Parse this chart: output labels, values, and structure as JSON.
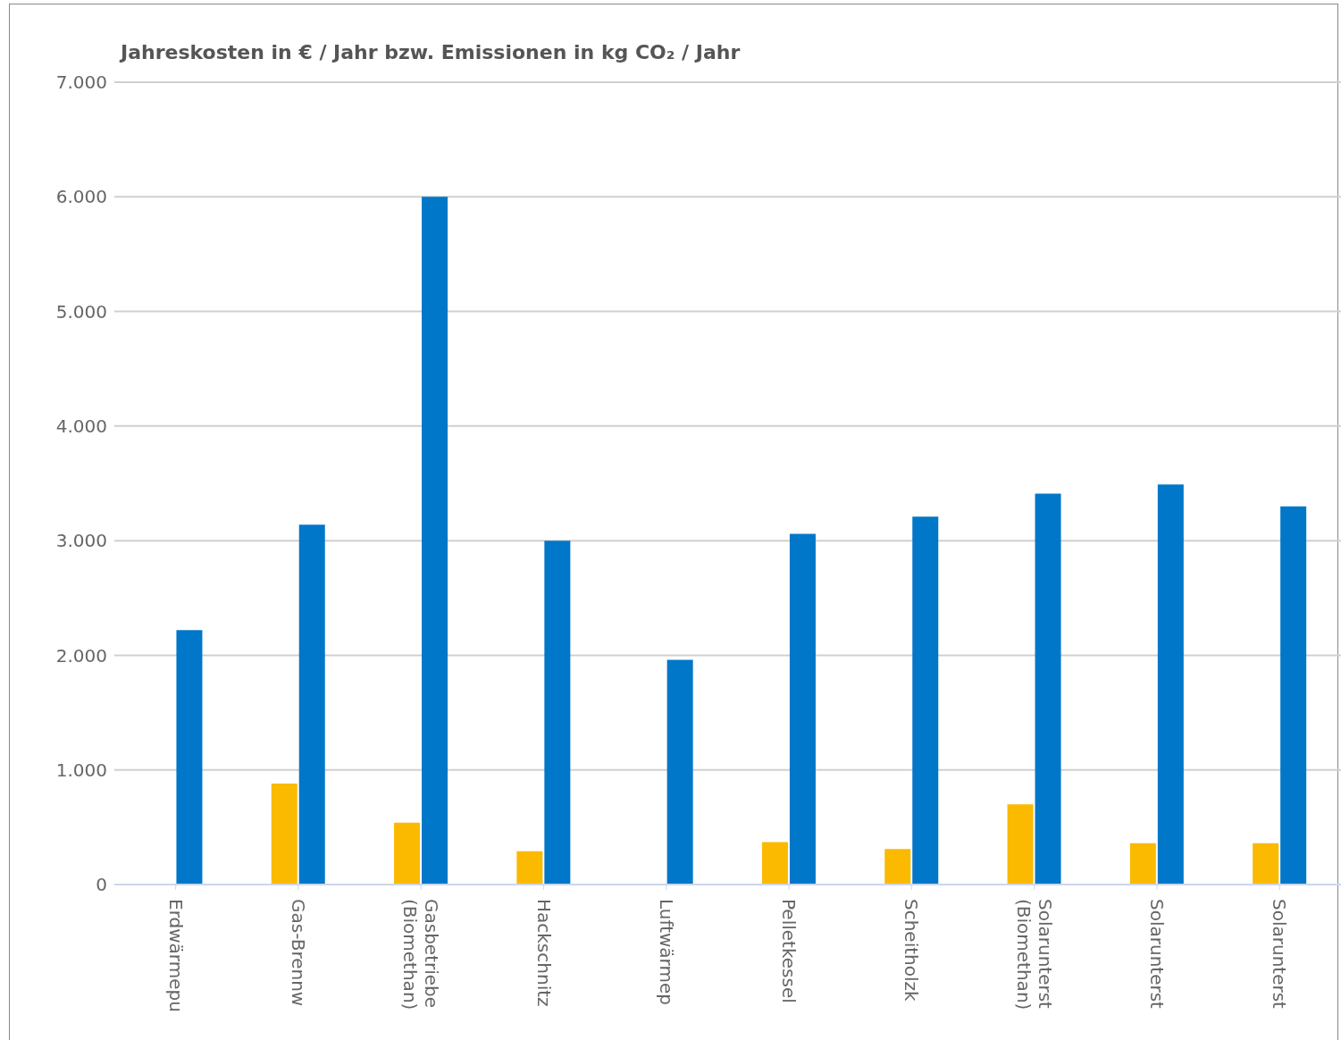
{
  "chart_data": {
    "type": "bar",
    "ylabel": "Jahreskosten in € / Jahr bzw. Emissionen in kg CO₂ / Jahr",
    "categories": [
      "Erdwärmepu",
      "Gas-Brennw",
      "Gasbetriebe\n(Biomethan)",
      "Hackschnitz",
      "Luftwärmep",
      "Pelletkessel",
      "Scheitholzk",
      "Solarunterst\n(Biomethan)",
      "Solarunterst",
      "Solarunterst"
    ],
    "series": [
      {
        "color": "#fbb900",
        "values": [
          null,
          880,
          540,
          290,
          null,
          370,
          310,
          700,
          360,
          360
        ]
      },
      {
        "color": "#0077c8",
        "values": [
          2220,
          3140,
          6000,
          3000,
          1960,
          3060,
          3210,
          3410,
          3490,
          3300
        ]
      }
    ],
    "ylim": [
      0,
      7000
    ],
    "yticks": [
      {
        "value": 0,
        "label": "0"
      },
      {
        "value": 1000,
        "label": "1.000"
      },
      {
        "value": 2000,
        "label": "2.000"
      },
      {
        "value": 3000,
        "label": "3.000"
      },
      {
        "value": 4000,
        "label": "4.000"
      },
      {
        "value": 5000,
        "label": "5.000"
      },
      {
        "value": 6000,
        "label": "6.000"
      },
      {
        "value": 7000,
        "label": "7.000"
      }
    ],
    "grid": "y"
  }
}
